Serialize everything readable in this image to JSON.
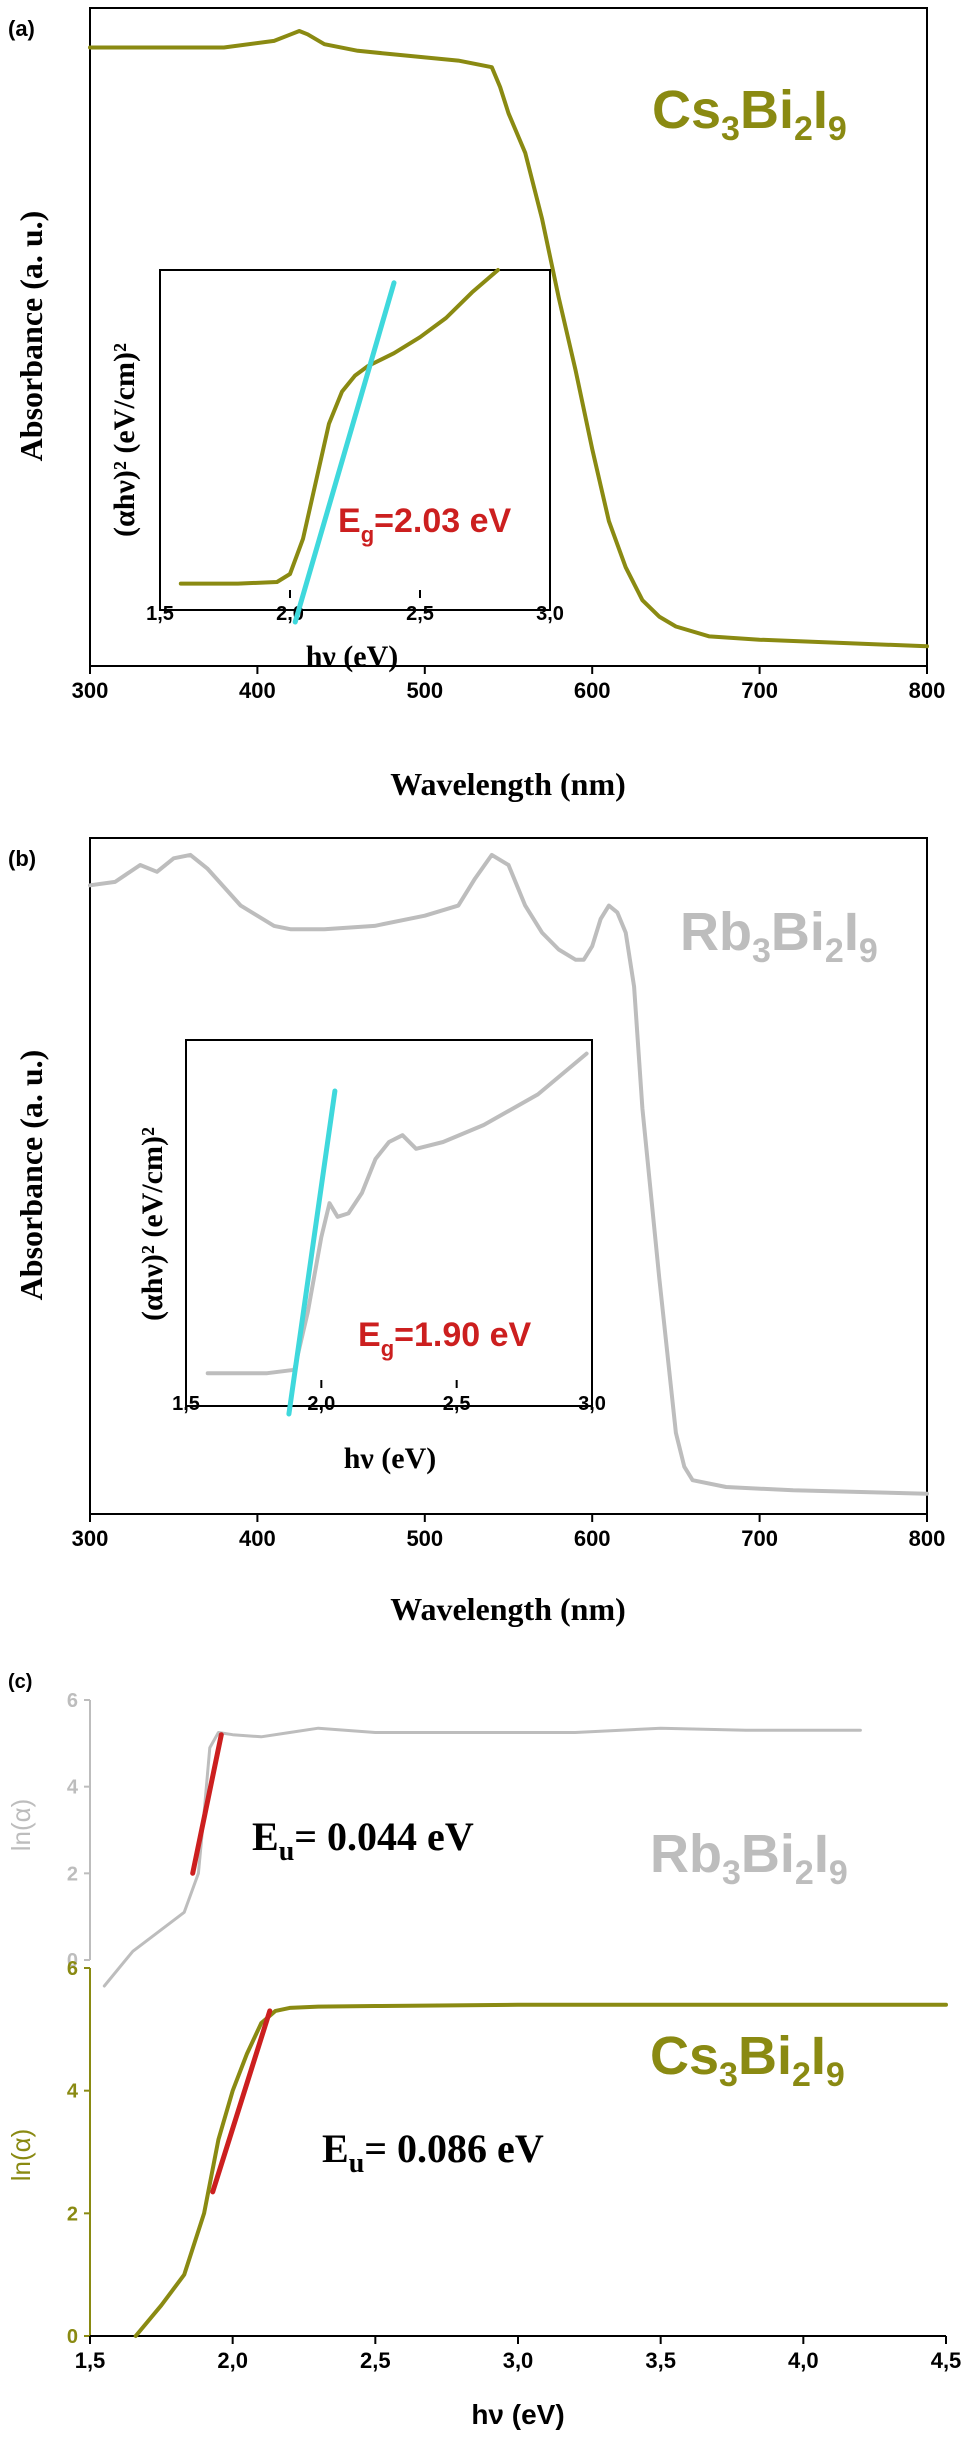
{
  "panel_labels": {
    "a": "(a)",
    "b": "(b)",
    "c": "(c)"
  },
  "colors": {
    "olive": "#8a8a12",
    "gray": "#bdbdbd",
    "cyan": "#3fd8dc",
    "red": "#cc1f1f",
    "black": "#000000"
  },
  "panels": {
    "a": {
      "ylabel": "Absorbance (a. u.)",
      "xlabel": "Wavelength (nm)",
      "compound": {
        "base1": "Cs",
        "sub1": "3",
        "base2": "Bi",
        "sub2": "2",
        "base3": "I",
        "sub3": "9"
      },
      "inset": {
        "ylabel_text": "(αhν)² (eV/cm)²",
        "xlabel": "hν (eV)",
        "eg_prefix": "E",
        "eg_sub": "g",
        "eg_value": "=2.03 eV"
      }
    },
    "b": {
      "ylabel": "Absorbance (a. u.)",
      "xlabel": "Wavelength (nm)",
      "compound": {
        "base1": "Rb",
        "sub1": "3",
        "base2": "Bi",
        "sub2": "2",
        "base3": "I",
        "sub3": "9"
      },
      "inset": {
        "ylabel_text": "(αhν)² (eV/cm)²",
        "xlabel": "hν (eV)",
        "eg_prefix": "E",
        "eg_sub": "g",
        "eg_value": "=1.90 eV"
      }
    },
    "c": {
      "top": {
        "ylabel": "ln(α)",
        "eu_prefix": "E",
        "eu_sub": "u",
        "eu_value": "= 0.044 eV",
        "compound": {
          "base1": "Rb",
          "sub1": "3",
          "base2": "Bi",
          "sub2": "2",
          "base3": "I",
          "sub3": "9"
        }
      },
      "bottom": {
        "ylabel": "ln(α)",
        "eu_prefix": "E",
        "eu_sub": "u",
        "eu_value": "= 0.086 eV",
        "compound": {
          "base1": "Cs",
          "sub1": "3",
          "base2": "Bi",
          "sub2": "2",
          "base3": "I",
          "sub3": "9"
        }
      },
      "xlabel": "hν (eV)"
    }
  },
  "chart_data": [
    {
      "id": "a-main",
      "type": "line",
      "color": "olive",
      "xlim": [
        300,
        800
      ],
      "ylim": [
        0,
        1
      ],
      "xticks": [
        300,
        400,
        500,
        600,
        700,
        800
      ],
      "yticks": [],
      "xticklabels": [
        "300",
        "400",
        "500",
        "600",
        "700",
        "800"
      ],
      "series": [
        {
          "x": [
            300,
            350,
            380,
            410,
            420,
            425,
            430,
            440,
            460,
            480,
            500,
            520,
            540,
            545,
            550,
            560,
            570,
            580,
            590,
            600,
            610,
            620,
            630,
            640,
            650,
            670,
            700,
            750,
            800
          ],
          "y": [
            0.94,
            0.94,
            0.94,
            0.95,
            0.96,
            0.965,
            0.96,
            0.945,
            0.935,
            0.93,
            0.925,
            0.92,
            0.91,
            0.88,
            0.84,
            0.78,
            0.68,
            0.56,
            0.45,
            0.33,
            0.22,
            0.15,
            0.1,
            0.075,
            0.06,
            0.045,
            0.04,
            0.035,
            0.03
          ]
        }
      ]
    },
    {
      "id": "a-inset",
      "type": "line",
      "xlim": [
        1.5,
        3.0
      ],
      "ylim": [
        0,
        1
      ],
      "xticks": [
        1.5,
        2.0,
        2.5,
        3.0
      ],
      "xticklabels": [
        "1,5",
        "2,0",
        "2,5",
        "3,0"
      ],
      "series": [
        {
          "color": "olive",
          "x": [
            1.58,
            1.8,
            1.95,
            2.0,
            2.05,
            2.1,
            2.15,
            2.2,
            2.25,
            2.3,
            2.4,
            2.5,
            2.6,
            2.7,
            2.8
          ],
          "y": [
            0.02,
            0.02,
            0.025,
            0.05,
            0.16,
            0.34,
            0.52,
            0.62,
            0.67,
            0.7,
            0.74,
            0.79,
            0.85,
            0.93,
            1.0
          ]
        },
        {
          "color": "cyan",
          "x": [
            2.02,
            2.4
          ],
          "y": [
            -0.1,
            0.96
          ]
        }
      ]
    },
    {
      "id": "b-main",
      "type": "line",
      "color": "gray",
      "xlim": [
        300,
        800
      ],
      "ylim": [
        0,
        1
      ],
      "xticks": [
        300,
        400,
        500,
        600,
        700,
        800
      ],
      "yticks": [],
      "xticklabels": [
        "300",
        "400",
        "500",
        "600",
        "700",
        "800"
      ],
      "series": [
        {
          "x": [
            300,
            315,
            330,
            340,
            350,
            360,
            370,
            390,
            410,
            420,
            440,
            470,
            500,
            520,
            530,
            540,
            550,
            560,
            570,
            580,
            590,
            595,
            600,
            605,
            610,
            615,
            620,
            625,
            630,
            640,
            650,
            655,
            660,
            680,
            720,
            800
          ],
          "y": [
            0.93,
            0.935,
            0.96,
            0.95,
            0.97,
            0.975,
            0.955,
            0.9,
            0.87,
            0.865,
            0.865,
            0.87,
            0.885,
            0.9,
            0.94,
            0.975,
            0.96,
            0.9,
            0.86,
            0.835,
            0.82,
            0.82,
            0.84,
            0.88,
            0.9,
            0.89,
            0.86,
            0.78,
            0.6,
            0.35,
            0.12,
            0.07,
            0.05,
            0.04,
            0.035,
            0.03
          ]
        }
      ]
    },
    {
      "id": "b-inset",
      "type": "line",
      "xlim": [
        1.5,
        3.0
      ],
      "ylim": [
        0,
        1
      ],
      "xticks": [
        1.5,
        2.0,
        2.5,
        3.0
      ],
      "xticklabels": [
        "1,5",
        "2,0",
        "2,5",
        "3,0"
      ],
      "series": [
        {
          "color": "gray",
          "x": [
            1.58,
            1.8,
            1.9,
            1.95,
            2.0,
            2.03,
            2.06,
            2.1,
            2.15,
            2.2,
            2.25,
            2.3,
            2.35,
            2.45,
            2.6,
            2.8,
            2.98
          ],
          "y": [
            0.02,
            0.02,
            0.03,
            0.2,
            0.42,
            0.52,
            0.48,
            0.49,
            0.55,
            0.65,
            0.7,
            0.72,
            0.68,
            0.7,
            0.75,
            0.84,
            0.96
          ]
        },
        {
          "color": "cyan",
          "x": [
            1.88,
            2.05
          ],
          "y": [
            -0.1,
            0.85
          ]
        }
      ]
    },
    {
      "id": "c-top",
      "type": "line",
      "xlim": [
        1.5,
        4.5
      ],
      "ylim": [
        0,
        6
      ],
      "yticks": [
        0,
        2,
        4,
        6
      ],
      "yticklabels": [
        "0",
        "2",
        "4",
        "6"
      ],
      "series": [
        {
          "color": "gray",
          "x": [
            1.55,
            1.65,
            1.75,
            1.83,
            1.88,
            1.9,
            1.92,
            1.95,
            2.0,
            2.1,
            2.2,
            2.3,
            2.5,
            2.8,
            3.2,
            3.5,
            3.8,
            4.2
          ],
          "y": [
            -0.6,
            0.2,
            0.7,
            1.1,
            2.0,
            3.4,
            4.9,
            5.25,
            5.2,
            5.15,
            5.25,
            5.35,
            5.25,
            5.25,
            5.25,
            5.35,
            5.3,
            5.3
          ]
        },
        {
          "color": "red",
          "x": [
            1.86,
            1.96
          ],
          "y": [
            2.0,
            5.2
          ]
        }
      ]
    },
    {
      "id": "c-bottom",
      "type": "line",
      "xlim": [
        1.5,
        4.5
      ],
      "ylim": [
        0,
        6
      ],
      "xticks": [
        1.5,
        2.0,
        2.5,
        3.0,
        3.5,
        4.0,
        4.5
      ],
      "xticklabels": [
        "1,5",
        "2,0",
        "2,5",
        "3,0",
        "3,5",
        "4,0",
        "4,5"
      ],
      "yticks": [
        0,
        2,
        4,
        6
      ],
      "yticklabels": [
        "0",
        "2",
        "4",
        "6"
      ],
      "series": [
        {
          "color": "olive",
          "x": [
            1.66,
            1.75,
            1.83,
            1.9,
            1.95,
            2.0,
            2.05,
            2.1,
            2.15,
            2.2,
            2.3,
            2.5,
            3.0,
            3.5,
            4.0,
            4.5
          ],
          "y": [
            0,
            0.5,
            1.0,
            2.0,
            3.2,
            4.0,
            4.6,
            5.1,
            5.3,
            5.35,
            5.37,
            5.38,
            5.4,
            5.4,
            5.4,
            5.4
          ]
        },
        {
          "color": "red",
          "x": [
            1.93,
            2.13
          ],
          "y": [
            2.35,
            5.3
          ]
        }
      ]
    }
  ]
}
